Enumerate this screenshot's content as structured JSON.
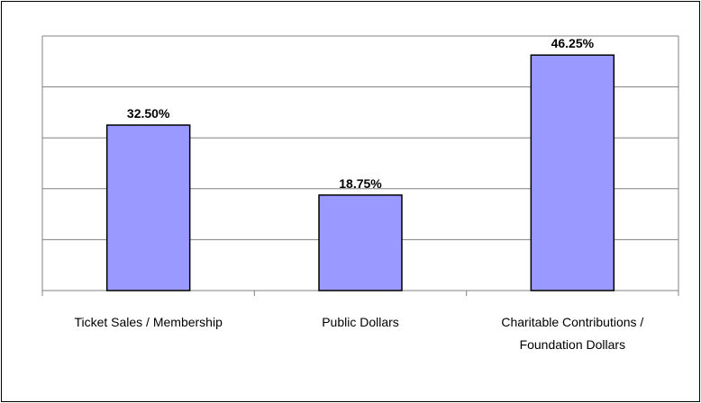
{
  "chart_data": {
    "type": "bar",
    "categories": [
      "Ticket Sales / Membership",
      "Public Dollars",
      "Charitable Contributions / Foundation Dollars"
    ],
    "values": [
      32.5,
      18.75,
      46.25
    ],
    "value_labels": [
      "32.50%",
      "18.75%",
      "46.25%"
    ],
    "color": "#9999ff",
    "ylim": [
      0,
      50
    ],
    "yticks": [
      0,
      10,
      20,
      30,
      40,
      50
    ],
    "grid": true
  }
}
